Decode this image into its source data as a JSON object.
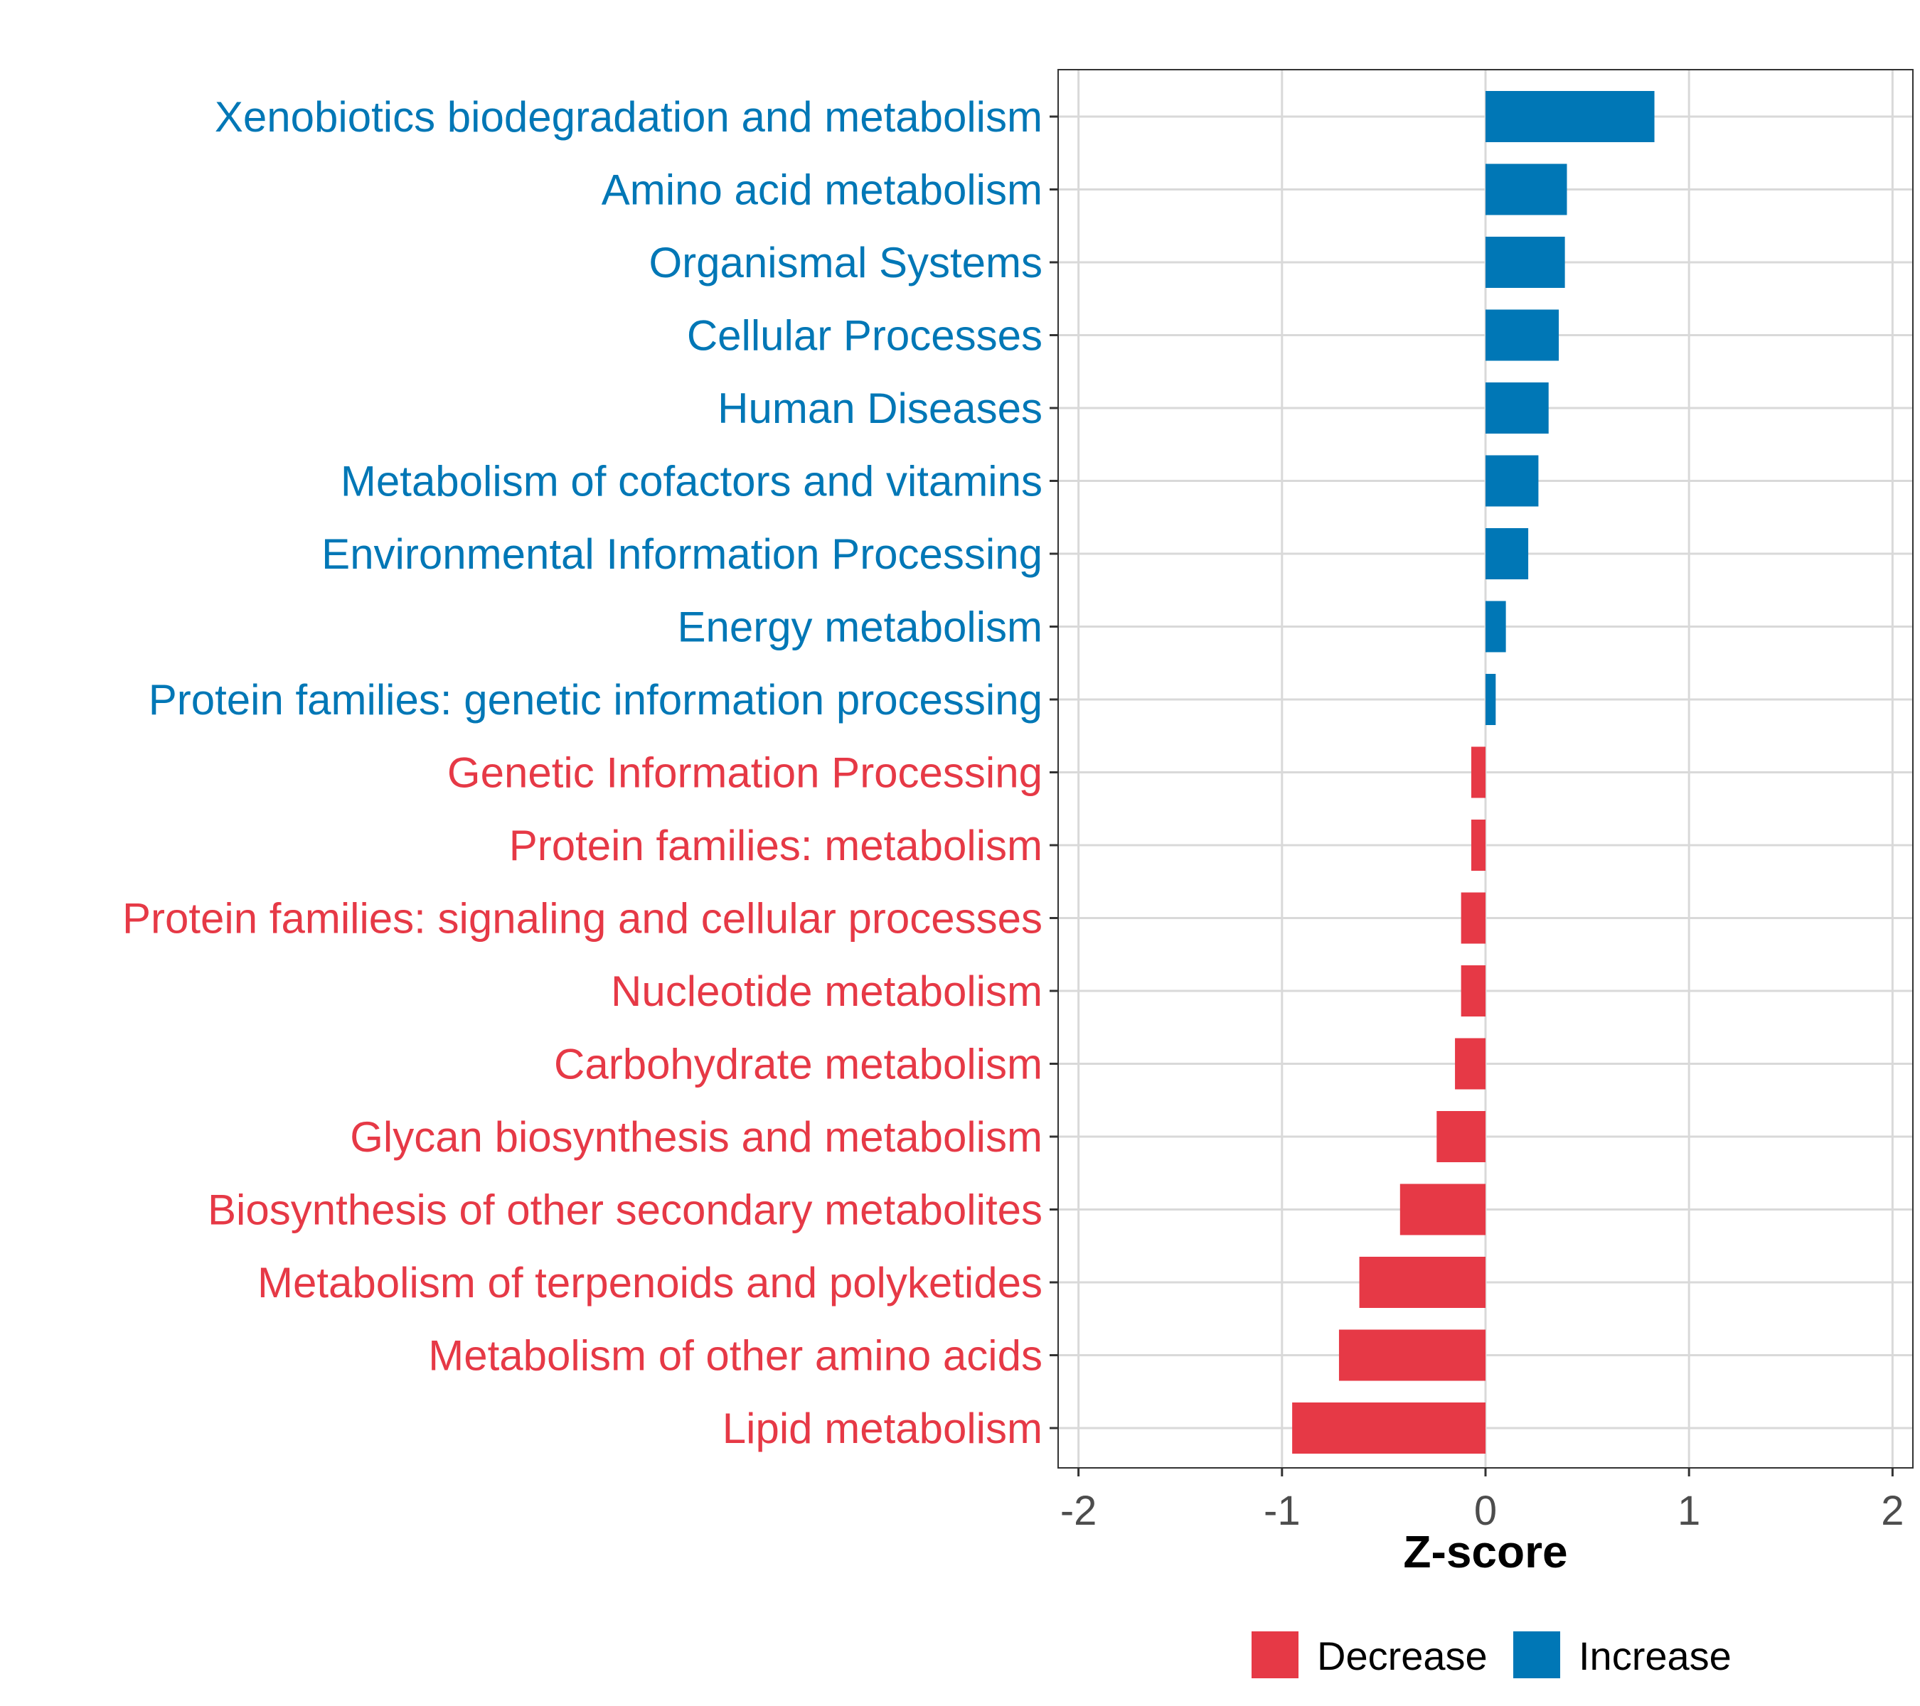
{
  "colors": {
    "decrease": "#E63946",
    "increase": "#0077B6",
    "grid": "#D9D9D9",
    "axis_text": "#4D4D4D",
    "panel_border": "#333333"
  },
  "chart_data": {
    "type": "bar",
    "orientation": "horizontal",
    "xlabel": "Z-score",
    "xlim": [
      -2.1,
      2.1
    ],
    "xticks": [
      -2,
      -1,
      0,
      1,
      2
    ],
    "xtick_labels": [
      "-2",
      "-1",
      "0",
      "1",
      "2"
    ],
    "grid": true,
    "legend_position": "bottom",
    "legend": [
      {
        "label": "Decrease",
        "group": "decrease"
      },
      {
        "label": "Increase",
        "group": "increase"
      }
    ],
    "categories": [
      "Xenobiotics biodegradation and metabolism",
      "Amino acid metabolism",
      "Organismal Systems",
      "Cellular Processes",
      "Human Diseases",
      "Metabolism of cofactors and vitamins",
      "Environmental Information Processing",
      "Energy metabolism",
      "Protein families: genetic information processing",
      "Genetic Information Processing",
      "Protein families: metabolism",
      "Protein families: signaling and cellular processes",
      "Nucleotide metabolism",
      "Carbohydrate metabolism",
      "Glycan biosynthesis and metabolism",
      "Biosynthesis of other secondary metabolites",
      "Metabolism of terpenoids and polyketides",
      "Metabolism of other amino acids",
      "Lipid metabolism"
    ],
    "values": [
      0.83,
      0.4,
      0.39,
      0.36,
      0.31,
      0.26,
      0.21,
      0.1,
      0.05,
      -0.07,
      -0.07,
      -0.12,
      -0.12,
      -0.15,
      -0.24,
      -0.42,
      -0.62,
      -0.72,
      -0.95
    ],
    "groups": [
      "increase",
      "increase",
      "increase",
      "increase",
      "increase",
      "increase",
      "increase",
      "increase",
      "increase",
      "decrease",
      "decrease",
      "decrease",
      "decrease",
      "decrease",
      "decrease",
      "decrease",
      "decrease",
      "decrease",
      "decrease"
    ]
  }
}
